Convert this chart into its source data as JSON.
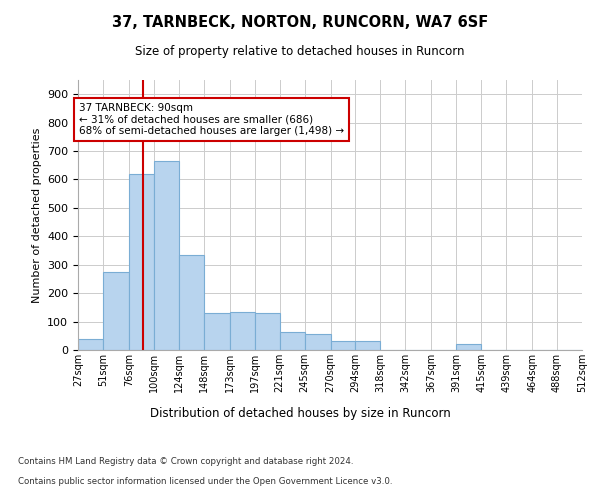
{
  "title": "37, TARNBECK, NORTON, RUNCORN, WA7 6SF",
  "subtitle": "Size of property relative to detached houses in Runcorn",
  "xlabel": "Distribution of detached houses by size in Runcorn",
  "ylabel": "Number of detached properties",
  "bar_color": "#b8d4ee",
  "bar_edge_color": "#7aadd4",
  "bins": [
    27,
    51,
    76,
    100,
    124,
    148,
    173,
    197,
    221,
    245,
    270,
    294,
    318,
    342,
    367,
    391,
    415,
    439,
    464,
    488,
    512
  ],
  "bin_labels": [
    "27sqm",
    "51sqm",
    "76sqm",
    "100sqm",
    "124sqm",
    "148sqm",
    "173sqm",
    "197sqm",
    "221sqm",
    "245sqm",
    "270sqm",
    "294sqm",
    "318sqm",
    "342sqm",
    "367sqm",
    "391sqm",
    "415sqm",
    "439sqm",
    "464sqm",
    "488sqm",
    "512sqm"
  ],
  "values": [
    40,
    275,
    620,
    665,
    335,
    130,
    135,
    130,
    65,
    55,
    30,
    30,
    0,
    0,
    0,
    20,
    0,
    0,
    0,
    0
  ],
  "vline_x": 90,
  "vline_color": "#cc0000",
  "annotation_text": "37 TARNBECK: 90sqm\n← 31% of detached houses are smaller (686)\n68% of semi-detached houses are larger (1,498) →",
  "annotation_box_color": "#ffffff",
  "annotation_box_edge": "#cc0000",
  "ylim": [
    0,
    950
  ],
  "yticks": [
    0,
    100,
    200,
    300,
    400,
    500,
    600,
    700,
    800,
    900
  ],
  "footer1": "Contains HM Land Registry data © Crown copyright and database right 2024.",
  "footer2": "Contains public sector information licensed under the Open Government Licence v3.0.",
  "background_color": "#ffffff",
  "grid_color": "#cccccc"
}
